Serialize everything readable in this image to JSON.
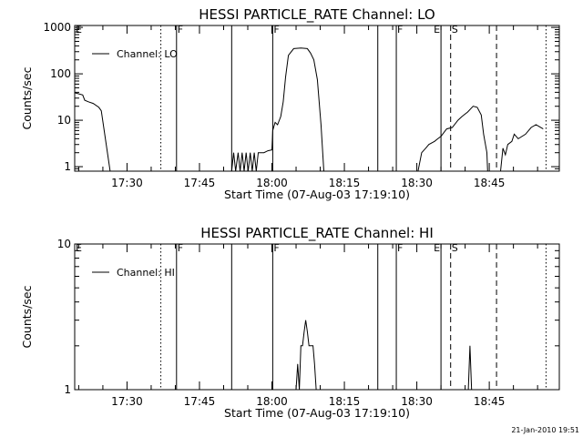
{
  "footer_text": "21-Jan-2010 19:51",
  "chart_data": [
    {
      "type": "line",
      "title": "HESSI PARTICLE_RATE Channel: LO",
      "xlabel": "Start Time (07-Aug-03 17:19:10)",
      "ylabel": "Counts/sec",
      "y_scale": "log",
      "ylim": [
        0.8,
        1100
      ],
      "y_ticks": [
        {
          "v": 1,
          "label": "1"
        },
        {
          "v": 10,
          "label": "10"
        },
        {
          "v": 100,
          "label": "100"
        },
        {
          "v": 1000,
          "label": "1000"
        }
      ],
      "xlim": [
        "17:19:10",
        "18:59:30"
      ],
      "x_ticks": [
        "17:30",
        "17:45",
        "18:00",
        "18:15",
        "18:30",
        "18:45"
      ],
      "grid": false,
      "legend": {
        "position": "top-left",
        "label": "Channel: LO"
      },
      "markers": [
        {
          "time": "17:19:10",
          "style": "solid",
          "label": "E"
        },
        {
          "time": "17:37:00",
          "style": "dotted",
          "label": ""
        },
        {
          "time": "17:40:15",
          "style": "solid",
          "label": "F"
        },
        {
          "time": "17:51:40",
          "style": "solid",
          "label": ""
        },
        {
          "time": "18:00:10",
          "style": "solid",
          "label": "F"
        },
        {
          "time": "18:21:55",
          "style": "solid",
          "label": ""
        },
        {
          "time": "18:25:45",
          "style": "solid",
          "label": "F"
        },
        {
          "time": "18:35:00",
          "style": "solid",
          "label": "E"
        },
        {
          "time": "18:37:00",
          "style": "dashed",
          "label": "S"
        },
        {
          "time": "18:46:30",
          "style": "dashed",
          "label": ""
        },
        {
          "time": "18:56:45",
          "style": "dotted",
          "label": ""
        }
      ],
      "series": [
        {
          "name": "Channel: LO",
          "points": [
            [
              "17:19:10",
              39
            ],
            [
              "17:20:50",
              35
            ],
            [
              "17:21:15",
              27
            ],
            [
              "17:22:00",
              25
            ],
            [
              "17:23:00",
              23
            ],
            [
              "17:24:10",
              19
            ],
            [
              "17:24:40",
              16
            ],
            [
              "17:26:30",
              0.8
            ],
            [
              "17:51:40",
              0.8
            ],
            [
              "17:52:05",
              2
            ],
            [
              "17:52:30",
              0.8
            ],
            [
              "17:53:00",
              2
            ],
            [
              "17:53:25",
              0.8
            ],
            [
              "17:53:50",
              2
            ],
            [
              "17:54:15",
              0.8
            ],
            [
              "17:54:40",
              2
            ],
            [
              "17:55:05",
              0.8
            ],
            [
              "17:55:30",
              2
            ],
            [
              "17:55:55",
              0.8
            ],
            [
              "17:56:20",
              2
            ],
            [
              "17:56:45",
              0.8
            ],
            [
              "17:57:10",
              2
            ],
            [
              "17:57:40",
              2
            ],
            [
              "17:58:20",
              2
            ],
            [
              "17:59:10",
              2.2
            ],
            [
              "18:00:00",
              2.3
            ],
            [
              "18:00:10",
              6
            ],
            [
              "18:00:40",
              9
            ],
            [
              "18:01:10",
              8
            ],
            [
              "18:01:50",
              12
            ],
            [
              "18:02:20",
              25
            ],
            [
              "18:02:50",
              85
            ],
            [
              "18:03:25",
              250
            ],
            [
              "18:04:30",
              350
            ],
            [
              "18:06:00",
              360
            ],
            [
              "18:07:20",
              350
            ],
            [
              "18:08:00",
              280
            ],
            [
              "18:08:40",
              200
            ],
            [
              "18:09:25",
              75
            ],
            [
              "18:10:10",
              8
            ],
            [
              "18:10:45",
              0.8
            ],
            [
              "18:30:15",
              0.8
            ],
            [
              "18:31:00",
              2
            ],
            [
              "18:31:50",
              2.5
            ],
            [
              "18:32:30",
              3
            ],
            [
              "18:33:40",
              3.5
            ],
            [
              "18:34:20",
              4
            ],
            [
              "18:35:00",
              4.5
            ],
            [
              "18:36:10",
              6.5
            ],
            [
              "18:37:20",
              7
            ],
            [
              "18:38:30",
              10
            ],
            [
              "18:39:20",
              12
            ],
            [
              "18:40:30",
              15
            ],
            [
              "18:41:40",
              20
            ],
            [
              "18:42:30",
              19
            ],
            [
              "18:43:20",
              13
            ],
            [
              "18:43:50",
              5
            ],
            [
              "18:44:30",
              2
            ],
            [
              "18:44:40",
              0.8
            ],
            [
              "18:47:20",
              0.8
            ],
            [
              "18:47:50",
              2.5
            ],
            [
              "18:48:20",
              1.8
            ],
            [
              "18:48:50",
              3
            ],
            [
              "18:49:40",
              3.5
            ],
            [
              "18:50:10",
              5
            ],
            [
              "18:51:00",
              4
            ],
            [
              "18:52:30",
              5
            ],
            [
              "18:53:40",
              7
            ],
            [
              "18:54:40",
              8
            ],
            [
              "18:56:10",
              6.5
            ]
          ]
        }
      ]
    },
    {
      "type": "line",
      "title": "HESSI PARTICLE_RATE Channel: HI",
      "xlabel": "Start Time (07-Aug-03 17:19:10)",
      "ylabel": "Counts/sec",
      "y_scale": "log",
      "ylim": [
        1,
        10
      ],
      "y_ticks": [
        {
          "v": 1,
          "label": "1"
        },
        {
          "v": 10,
          "label": "10"
        }
      ],
      "xlim": [
        "17:19:10",
        "18:59:30"
      ],
      "x_ticks": [
        "17:30",
        "17:45",
        "18:00",
        "18:15",
        "18:30",
        "18:45"
      ],
      "grid": false,
      "legend": {
        "position": "top-left",
        "label": "Channel: HI"
      },
      "markers": [
        {
          "time": "17:19:10",
          "style": "solid",
          "label": "E"
        },
        {
          "time": "17:37:00",
          "style": "dotted",
          "label": ""
        },
        {
          "time": "17:40:15",
          "style": "solid",
          "label": "F"
        },
        {
          "time": "17:51:40",
          "style": "solid",
          "label": ""
        },
        {
          "time": "18:00:10",
          "style": "solid",
          "label": "F"
        },
        {
          "time": "18:21:55",
          "style": "solid",
          "label": ""
        },
        {
          "time": "18:25:45",
          "style": "solid",
          "label": "F"
        },
        {
          "time": "18:35:00",
          "style": "solid",
          "label": "E"
        },
        {
          "time": "18:37:00",
          "style": "dashed",
          "label": "S"
        },
        {
          "time": "18:46:30",
          "style": "dashed",
          "label": ""
        },
        {
          "time": "18:56:45",
          "style": "dotted",
          "label": ""
        }
      ],
      "series": [
        {
          "name": "Channel: HI",
          "points": [
            [
              "18:05:00",
              1
            ],
            [
              "18:05:20",
              1.5
            ],
            [
              "18:05:40",
              1
            ],
            [
              "18:06:00",
              2
            ],
            [
              "18:06:20",
              2
            ],
            [
              "18:06:40",
              2.5
            ],
            [
              "18:07:00",
              3
            ],
            [
              "18:07:20",
              2.5
            ],
            [
              "18:07:40",
              2
            ],
            [
              "18:08:00",
              2
            ],
            [
              "18:08:30",
              2
            ],
            [
              "18:08:50",
              1.5
            ],
            [
              "18:09:10",
              1
            ],
            [
              "18:40:40",
              1
            ],
            [
              "18:41:00",
              2
            ],
            [
              "18:41:20",
              1
            ]
          ]
        }
      ]
    }
  ]
}
